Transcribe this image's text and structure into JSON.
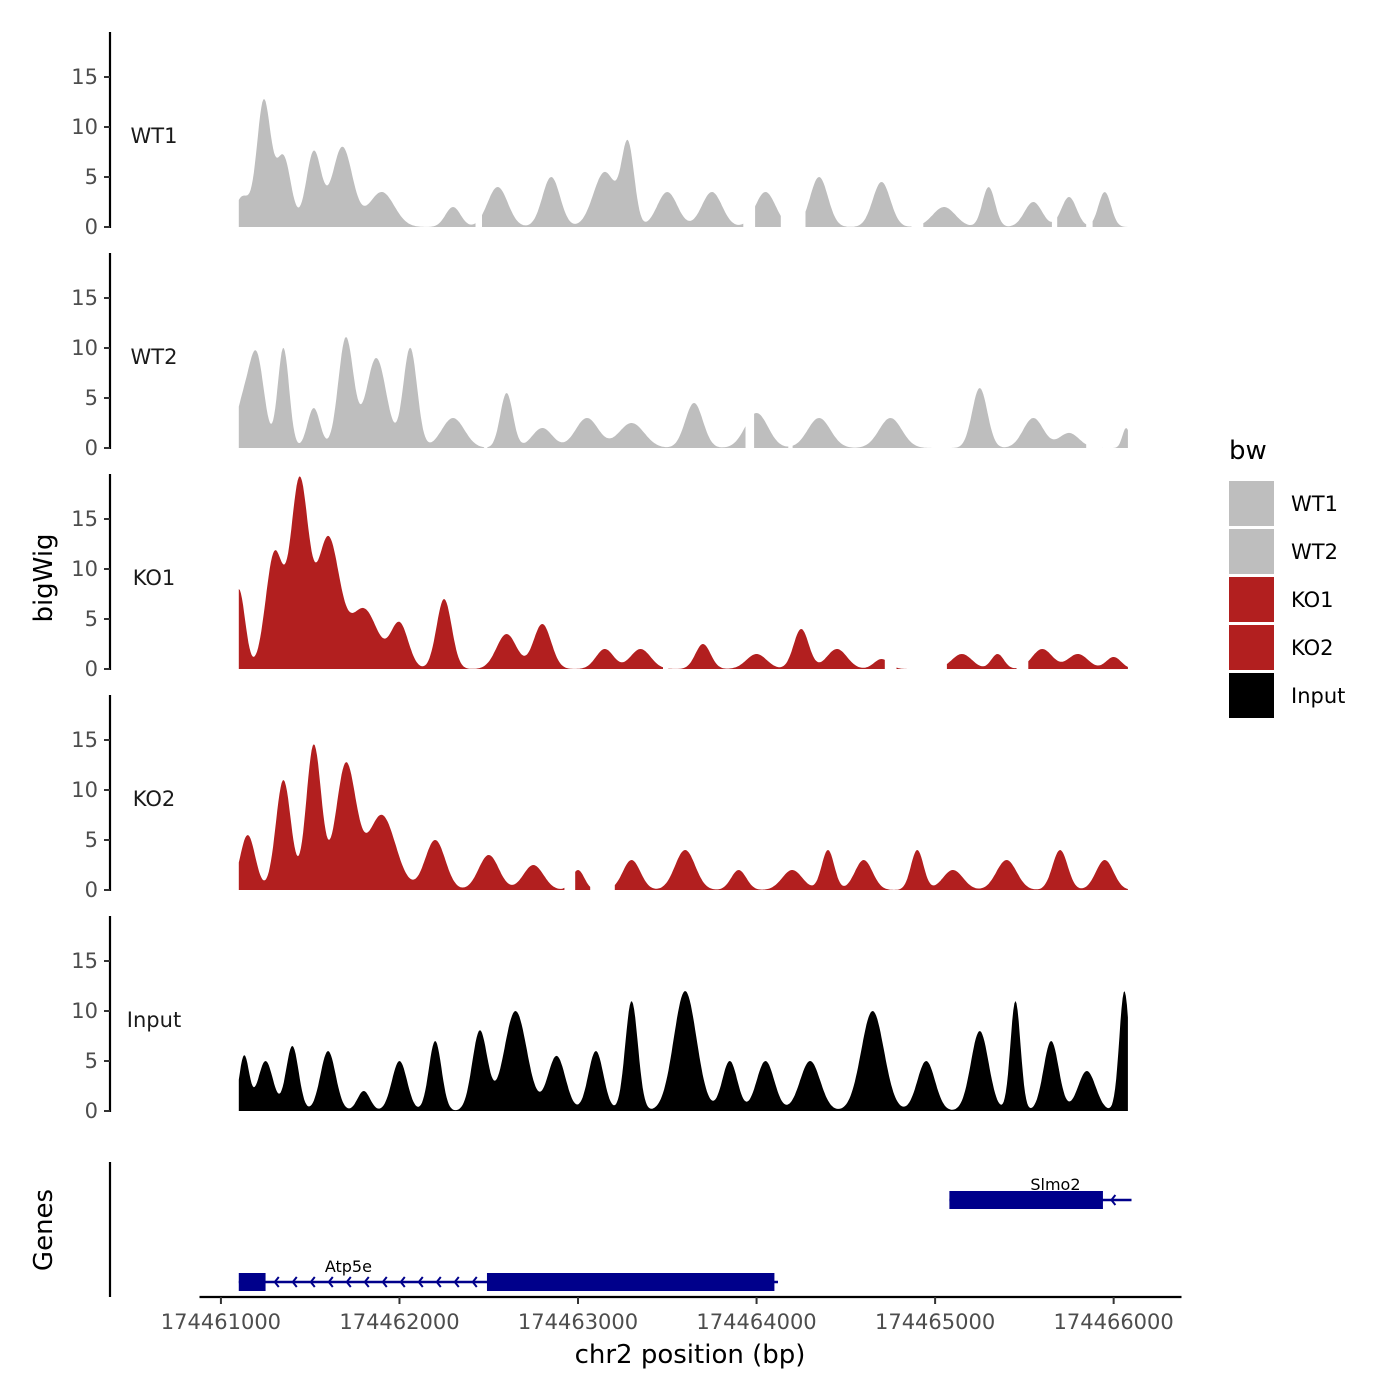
{
  "chart_data": {
    "type": "area",
    "chromosome": "chr2",
    "xlabel": "chr2 position (bp)",
    "ylabel": "bigWig",
    "genes_axis_label": "Genes",
    "xlim": [
      174460880,
      174466380
    ],
    "ylim": [
      0,
      19.5
    ],
    "x_ticks": [
      174461000,
      174462000,
      174463000,
      174464000,
      174465000,
      174466000
    ],
    "x_tick_labels": [
      "174461000",
      "174462000",
      "174463000",
      "174464000",
      "174465000",
      "174466000"
    ],
    "y_ticks": [
      0,
      5,
      10,
      15
    ],
    "y_tick_labels": [
      "0",
      "5",
      "10",
      "15"
    ],
    "x_start": 174461100,
    "x_end": 174466080,
    "legend": {
      "title": "bw",
      "position": "right",
      "entries": [
        {
          "label": "WT1",
          "color": "#bebebe"
        },
        {
          "label": "WT2",
          "color": "#bebebe"
        },
        {
          "label": "KO1",
          "color": "#b21f1f"
        },
        {
          "label": "KO2",
          "color": "#b21f1f"
        },
        {
          "label": "Input",
          "color": "#000000"
        }
      ]
    },
    "series": [
      {
        "name": "WT1",
        "color": "#bebebe",
        "peaks": [
          [
            174461120,
            3,
            60
          ],
          [
            174461240,
            12.5,
            55
          ],
          [
            174461350,
            7,
            60
          ],
          [
            174461520,
            7.5,
            60
          ],
          [
            174461680,
            8,
            80
          ],
          [
            174461900,
            3.5,
            100
          ],
          [
            174462300,
            2,
            60
          ],
          [
            174462550,
            4,
            80
          ],
          [
            174462850,
            5,
            70
          ],
          [
            174463150,
            5.5,
            90
          ],
          [
            174463280,
            8,
            50
          ],
          [
            174463500,
            3.5,
            80
          ],
          [
            174463750,
            3.5,
            80
          ],
          [
            174464050,
            3.5,
            80
          ],
          [
            174464350,
            5,
            70
          ],
          [
            174464700,
            4.5,
            70
          ],
          [
            174465050,
            2,
            90
          ],
          [
            174465300,
            4,
            50
          ],
          [
            174465550,
            2.5,
            70
          ],
          [
            174465750,
            3,
            60
          ],
          [
            174465950,
            3.5,
            50
          ]
        ],
        "gaps": [
          [
            174462430,
            174462460
          ],
          [
            174463930,
            174463990
          ],
          [
            174464140,
            174464270
          ],
          [
            174464870,
            174464930
          ],
          [
            174465660,
            174465680
          ],
          [
            174465850,
            174465880
          ]
        ]
      },
      {
        "name": "WT2",
        "color": "#bebebe",
        "peaks": [
          [
            174461120,
            4,
            60
          ],
          [
            174461200,
            9,
            60
          ],
          [
            174461350,
            10,
            45
          ],
          [
            174461520,
            4,
            50
          ],
          [
            174461700,
            11,
            60
          ],
          [
            174461870,
            9,
            80
          ],
          [
            174462060,
            10,
            55
          ],
          [
            174462300,
            3,
            90
          ],
          [
            174462600,
            5.5,
            50
          ],
          [
            174462800,
            2,
            80
          ],
          [
            174463050,
            3,
            90
          ],
          [
            174463300,
            2.5,
            100
          ],
          [
            174463650,
            4.5,
            70
          ],
          [
            174464000,
            3.5,
            90
          ],
          [
            174464350,
            3,
            90
          ],
          [
            174464750,
            3,
            90
          ],
          [
            174465250,
            6,
            60
          ],
          [
            174465550,
            3,
            80
          ],
          [
            174465750,
            1.5,
            80
          ],
          [
            174466070,
            2,
            30
          ]
        ],
        "gaps": [
          [
            174462480,
            174462490
          ],
          [
            174463940,
            174463980
          ],
          [
            174464180,
            174464200
          ],
          [
            174465850,
            174465930
          ]
        ]
      },
      {
        "name": "KO1",
        "color": "#b21f1f",
        "peaks": [
          [
            174461100,
            8,
            50
          ],
          [
            174461300,
            11.5,
            70
          ],
          [
            174461440,
            18.5,
            70
          ],
          [
            174461600,
            13,
            90
          ],
          [
            174461800,
            6,
            110
          ],
          [
            174462000,
            4.5,
            70
          ],
          [
            174462250,
            7,
            60
          ],
          [
            174462600,
            3.5,
            80
          ],
          [
            174462800,
            4.5,
            70
          ],
          [
            174463150,
            2,
            70
          ],
          [
            174463350,
            2,
            80
          ],
          [
            174463700,
            2.5,
            60
          ],
          [
            174464000,
            1.5,
            80
          ],
          [
            174464250,
            4,
            60
          ],
          [
            174464450,
            2,
            80
          ],
          [
            174464700,
            1,
            60
          ],
          [
            174465150,
            1.5,
            80
          ],
          [
            174465350,
            1.5,
            50
          ],
          [
            174465600,
            2,
            80
          ],
          [
            174465800,
            1.5,
            80
          ],
          [
            174466000,
            1.2,
            60
          ]
        ],
        "gaps": [
          [
            174463480,
            174463500
          ],
          [
            174464720,
            174464780
          ],
          [
            174464930,
            174465060
          ],
          [
            174465460,
            174465520
          ]
        ]
      },
      {
        "name": "KO2",
        "color": "#b21f1f",
        "peaks": [
          [
            174461150,
            5.5,
            60
          ],
          [
            174461350,
            11,
            60
          ],
          [
            174461520,
            14.5,
            60
          ],
          [
            174461700,
            12.5,
            80
          ],
          [
            174461900,
            7.5,
            110
          ],
          [
            174462200,
            5,
            80
          ],
          [
            174462500,
            3.5,
            80
          ],
          [
            174462750,
            2.5,
            80
          ],
          [
            174463000,
            2,
            50
          ],
          [
            174463300,
            3,
            70
          ],
          [
            174463600,
            4,
            80
          ],
          [
            174463900,
            2,
            60
          ],
          [
            174464200,
            2,
            80
          ],
          [
            174464400,
            4,
            50
          ],
          [
            174464600,
            3,
            70
          ],
          [
            174464900,
            4,
            50
          ],
          [
            174465100,
            2,
            80
          ],
          [
            174465400,
            3,
            80
          ],
          [
            174465700,
            4,
            60
          ],
          [
            174465950,
            3,
            70
          ]
        ],
        "gaps": [
          [
            174462930,
            174462980
          ],
          [
            174463070,
            174463200
          ]
        ]
      },
      {
        "name": "Input",
        "color": "#000000",
        "peaks": [
          [
            174461130,
            5.5,
            40
          ],
          [
            174461250,
            5,
            60
          ],
          [
            174461400,
            6.5,
            50
          ],
          [
            174461600,
            6,
            60
          ],
          [
            174461800,
            2,
            50
          ],
          [
            174462000,
            5,
            60
          ],
          [
            174462200,
            7,
            50
          ],
          [
            174462450,
            8,
            60
          ],
          [
            174462650,
            10,
            90
          ],
          [
            174462880,
            5.5,
            70
          ],
          [
            174463100,
            6,
            60
          ],
          [
            174463300,
            11,
            50
          ],
          [
            174463600,
            12,
            90
          ],
          [
            174463850,
            5,
            60
          ],
          [
            174464050,
            5,
            70
          ],
          [
            174464300,
            5,
            80
          ],
          [
            174464650,
            10,
            90
          ],
          [
            174464950,
            5,
            70
          ],
          [
            174465250,
            8,
            70
          ],
          [
            174465450,
            11,
            40
          ],
          [
            174465650,
            7,
            60
          ],
          [
            174465850,
            4,
            70
          ],
          [
            174466060,
            12,
            40
          ]
        ],
        "gaps": []
      }
    ],
    "genes": [
      {
        "name": "Slmo2",
        "strand": "-",
        "start": 174465080,
        "end": 174466100,
        "thick_segments": [
          [
            174465080,
            174465940
          ]
        ],
        "row": 1
      },
      {
        "name": "Atp5e",
        "strand": "-",
        "start": 174461100,
        "end": 174464120,
        "thick_segments": [
          [
            174461100,
            174461250
          ],
          [
            174462490,
            174464100
          ]
        ],
        "row": 2
      }
    ]
  }
}
